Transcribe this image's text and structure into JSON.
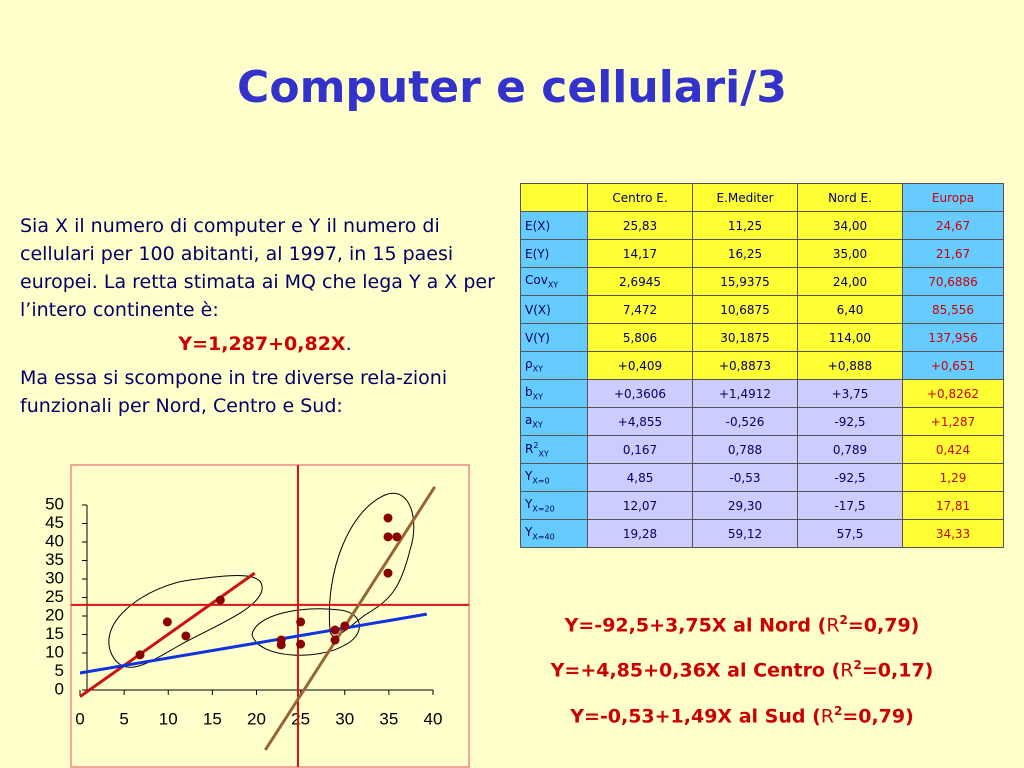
{
  "title": "Computer e cellulari/3",
  "intro": "Sia X il numero di computer e Y il numero di cellulari per 100 abitanti, al 1997, in 15 paesi europei. La retta stimata ai MQ che lega Y a X per l’intero continente è:",
  "equation": "Y=1,287+0,82X",
  "equation_end": ".",
  "outro": "Ma essa si scompone in tre diverse rela-zioni funzionali per Nord, Centro e Sud:",
  "table": {
    "headers": [
      "Centro E.",
      "E.Mediter",
      "Nord E.",
      "Europa"
    ],
    "rows": [
      {
        "label": {
          "main": "E(X)"
        },
        "cells": [
          "25,83",
          "11,25",
          "34,00",
          "24,67"
        ]
      },
      {
        "label": {
          "main": "E(Y)"
        },
        "cells": [
          "14,17",
          "16,25",
          "35,00",
          "21,67"
        ]
      },
      {
        "label": {
          "main": "Cov",
          "sub": "XY"
        },
        "cells": [
          "2,6945",
          "15,9375",
          "24,00",
          "70,6886"
        ]
      },
      {
        "label": {
          "main": "V(X)"
        },
        "cells": [
          "7,472",
          "10,6875",
          "6,40",
          "85,556"
        ]
      },
      {
        "label": {
          "main": "V(Y)"
        },
        "cells": [
          "5,806",
          "30,1875",
          "114,00",
          "137,956"
        ]
      },
      {
        "label": {
          "main": "ρ",
          "sub": "XY"
        },
        "cells": [
          "+0,409",
          "+0,8873",
          "+0,888",
          "+0,651"
        ]
      },
      {
        "label": {
          "main": "b",
          "sub": "XY"
        },
        "cells": [
          "+0,3606",
          "+1,4912",
          "+3,75",
          "+0,8262"
        ]
      },
      {
        "label": {
          "main": "a",
          "sub": "XY"
        },
        "cells": [
          "+4,855",
          "-0,526",
          "-92,5",
          "+1,287"
        ]
      },
      {
        "label": {
          "main": "R",
          "sup": "2",
          "sub": "XY"
        },
        "cells": [
          "0,167",
          "0,788",
          "0,789",
          "0,424"
        ]
      },
      {
        "label": {
          "main": "Y",
          "sub": "X=0"
        },
        "cells": [
          "4,85",
          "-0,53",
          "-92,5",
          "1,29"
        ]
      },
      {
        "label": {
          "main": "Y",
          "sub": "X=20"
        },
        "cells": [
          "12,07",
          "29,30",
          "-17,5",
          "17,81"
        ]
      },
      {
        "label": {
          "main": "Y",
          "sub": "X=40"
        },
        "cells": [
          "19,28",
          "59,12",
          "57,5",
          "34,33"
        ]
      }
    ]
  },
  "fit_equations": [
    {
      "prefix": "Y=-92,5+3,75X al Nord (",
      "r": "R",
      "sup": "2",
      "suffix": "=0,79)"
    },
    {
      "prefix": "Y=+4,85+0,36X al Centro (",
      "r": "R",
      "sup": "2",
      "suffix": "=0,17)"
    },
    {
      "prefix": "Y=-0,53+1,49X al Sud (",
      "r": "R",
      "sup": "2",
      "suffix": "=0,79)"
    }
  ],
  "chart_data": {
    "type": "scatter",
    "xlim": [
      0,
      40
    ],
    "ylim": [
      0,
      50
    ],
    "xticks": [
      0,
      5,
      10,
      15,
      20,
      25,
      30,
      35,
      40
    ],
    "yticks": [
      0,
      5,
      10,
      15,
      20,
      25,
      30,
      35,
      40,
      45,
      50
    ],
    "points": {
      "color": "#8b0000",
      "x": [
        6.8,
        9.9,
        12.0,
        15.9,
        22.8,
        22.8,
        25.0,
        25.0,
        28.9,
        28.9,
        30.0,
        34.9,
        34.9,
        35.9,
        34.9
      ],
      "y": [
        9.5,
        18.4,
        14.6,
        24.3,
        13.5,
        12.2,
        18.4,
        12.4,
        13.5,
        16.2,
        17.3,
        46.5,
        41.4,
        41.4,
        31.6
      ]
    },
    "fits": [
      {
        "color": "#cc1111",
        "x": [
          0,
          19.8
        ],
        "y": [
          -1.8,
          31.6
        ]
      },
      {
        "color": "#1133dd",
        "x": [
          0,
          39.3
        ],
        "y": [
          4.6,
          20.5
        ]
      },
      {
        "color": "#996633",
        "x": [
          21.0,
          40.2
        ],
        "y": [
          -16.2,
          54.9
        ]
      }
    ],
    "ref_color": "#dd1111",
    "vline_x": 24.7,
    "hline_y": 23.0
  }
}
